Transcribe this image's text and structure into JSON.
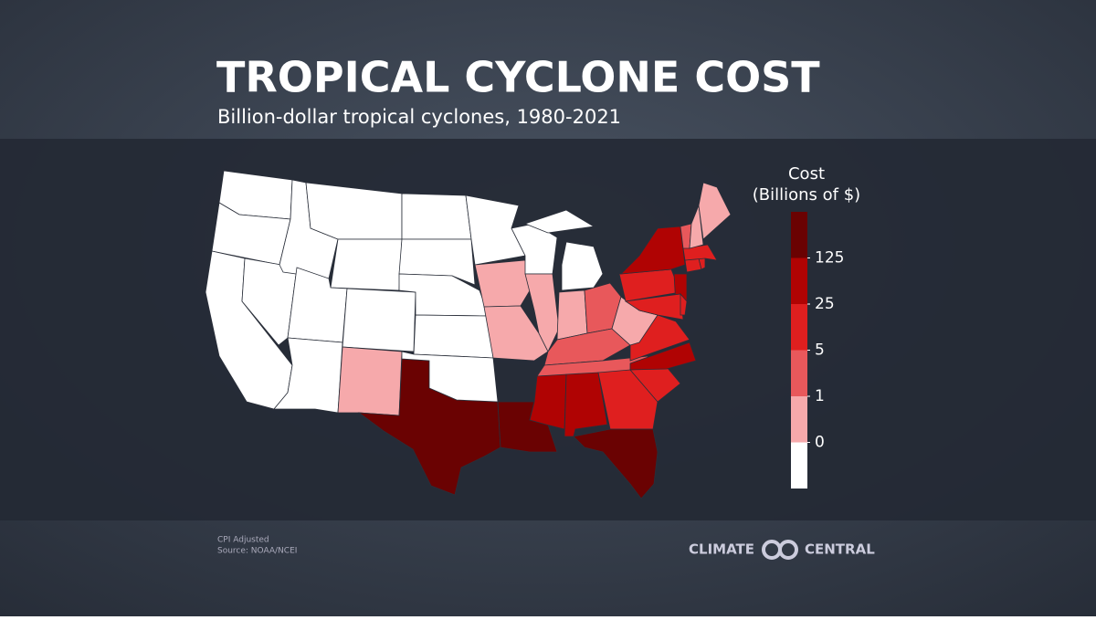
{
  "header": {
    "title": "TROPICAL CYCLONE COST",
    "subtitle": "Billion-dollar tropical cyclones, 1980-2021"
  },
  "legend": {
    "title_lines": [
      "Cost",
      "(Billions of $)"
    ],
    "ticks": [
      0,
      1,
      5,
      25,
      125
    ],
    "colors": [
      "#ffffff",
      "#f6a9ab",
      "#e8585b",
      "#df1f1f",
      "#b00303",
      "#6a0202"
    ]
  },
  "map": {
    "region_colors": [
      "#ffffff",
      "#ffffff",
      "#ffffff",
      "#ffffff",
      "#ffffff",
      "#ffffff",
      "#ffffff",
      "#ffffff",
      "#ffffff",
      "#ffffff",
      "#f6a9ab",
      "#ffffff",
      "#ffffff",
      "#ffffff",
      "#ffffff",
      "#6a0202",
      "#ffffff",
      "#ffffff",
      "#f6a9ab",
      "#f6a9ab",
      "#6a0202",
      "#ffffff",
      "#f6a9ab",
      "#ffffff",
      "#ffffff",
      "#f6a9ab",
      "#e8585b",
      "#e8585b",
      "#e8585b",
      "#b00303",
      "#b00303",
      "#df1f1f",
      "#6a0202",
      "#df1f1f",
      "#b00303",
      "#df1f1f",
      "#f6a9ab",
      "#df1f1f",
      "#b00303",
      "#b00303",
      "#df1f1f",
      "#df1f1f",
      "#df1f1f",
      "#df1f1f",
      "#df1f1f",
      "#e8585b",
      "#f6a9ab",
      "#f6a9ab"
    ]
  },
  "footer": {
    "notes": [
      "CPI Adjusted",
      "Source: NOAA/NCEI"
    ],
    "logo": [
      "CLIMATE",
      "CENTRAL"
    ]
  }
}
